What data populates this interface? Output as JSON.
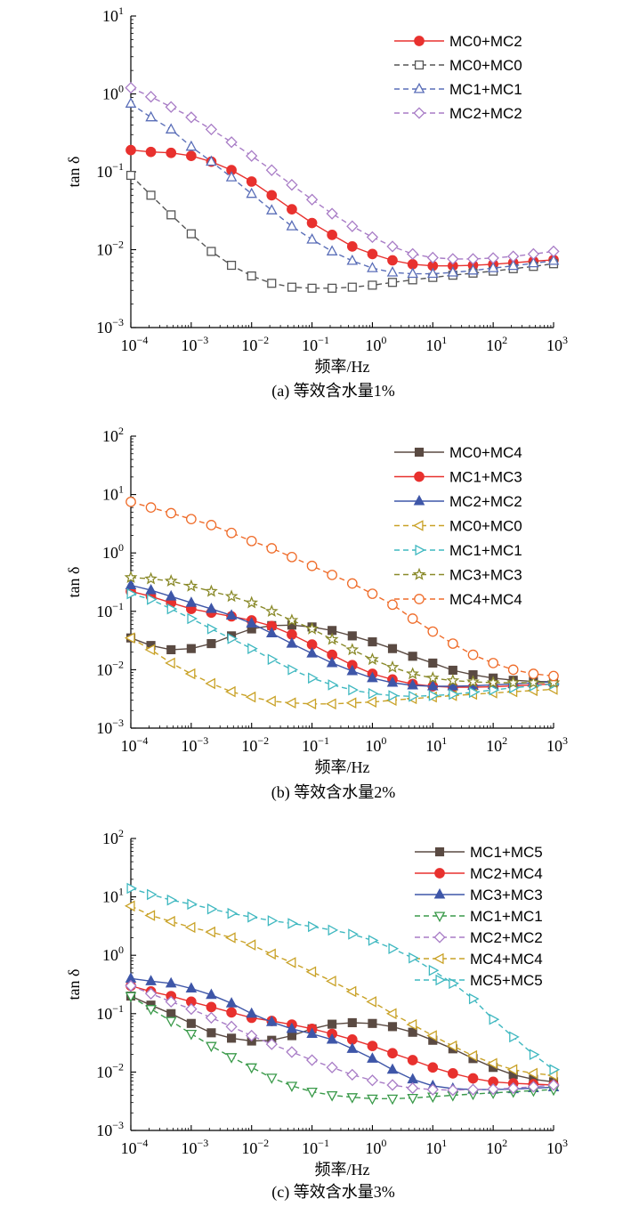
{
  "chart_data": [
    {
      "type": "line",
      "panel": "a",
      "caption": "(a)  等效含水量1%",
      "xlabel": "频率/Hz",
      "ylabel": "tan δ",
      "xscale": "log",
      "yscale": "log",
      "xlim": [
        0.0001,
        1000
      ],
      "ylim": [
        0.001,
        10
      ],
      "x_ticks": [
        "10−4",
        "10−3",
        "10−2",
        "10−1",
        "100",
        "101",
        "102",
        "103"
      ],
      "y_ticks": [
        "10−3",
        "10−2",
        "10−1",
        "100",
        "101"
      ],
      "grid": false,
      "legend_position": "top-right",
      "x": [
        0.0001,
        0.000215,
        0.000464,
        0.001,
        0.00215,
        0.00464,
        0.01,
        0.0215,
        0.0464,
        0.1,
        0.215,
        0.464,
        1,
        2.15,
        4.64,
        10,
        21.5,
        46.4,
        100,
        215,
        464,
        1000
      ],
      "series": [
        {
          "name": "MC0+MC2",
          "color": "#e8312e",
          "marker": "circle-filled",
          "dashed": false,
          "values": [
            0.19,
            0.18,
            0.175,
            0.16,
            0.135,
            0.105,
            0.075,
            0.05,
            0.033,
            0.022,
            0.0155,
            0.011,
            0.0088,
            0.0073,
            0.0065,
            0.0062,
            0.0062,
            0.0063,
            0.0065,
            0.0068,
            0.0071,
            0.0074
          ]
        },
        {
          "name": "MC0+MC0",
          "color": "#555555",
          "marker": "square-open",
          "dashed": true,
          "values": [
            0.09,
            0.05,
            0.028,
            0.016,
            0.0095,
            0.0063,
            0.0046,
            0.0037,
            0.0033,
            0.0032,
            0.0032,
            0.0033,
            0.0035,
            0.0038,
            0.0041,
            0.0044,
            0.0047,
            0.005,
            0.0053,
            0.0057,
            0.0061,
            0.0066
          ]
        },
        {
          "name": "MC1+MC1",
          "color": "#5a6eb8",
          "marker": "triangle-open",
          "dashed": true,
          "values": [
            0.75,
            0.5,
            0.35,
            0.21,
            0.135,
            0.085,
            0.052,
            0.032,
            0.02,
            0.0135,
            0.0095,
            0.0072,
            0.0058,
            0.0051,
            0.0049,
            0.0049,
            0.0051,
            0.0054,
            0.0058,
            0.0062,
            0.0067,
            0.0072
          ]
        },
        {
          "name": "MC2+MC2",
          "color": "#a87cc6",
          "marker": "diamond-open",
          "dashed": true,
          "values": [
            1.2,
            0.92,
            0.68,
            0.5,
            0.35,
            0.24,
            0.16,
            0.105,
            0.068,
            0.044,
            0.029,
            0.02,
            0.0145,
            0.011,
            0.0088,
            0.0079,
            0.0076,
            0.0076,
            0.0078,
            0.0082,
            0.0088,
            0.0095
          ]
        }
      ]
    },
    {
      "type": "line",
      "panel": "b",
      "caption": "(b)  等效含水量2%",
      "xlabel": "频率/Hz",
      "ylabel": "tan δ",
      "xscale": "log",
      "yscale": "log",
      "xlim": [
        0.0001,
        1000
      ],
      "ylim": [
        0.001,
        100
      ],
      "x_ticks": [
        "10−4",
        "10−3",
        "10−2",
        "10−1",
        "100",
        "101",
        "102",
        "103"
      ],
      "y_ticks": [
        "10−3",
        "10−2",
        "10−1",
        "100",
        "101",
        "102"
      ],
      "grid": false,
      "legend_position": "top-right",
      "x": [
        0.0001,
        0.000215,
        0.000464,
        0.001,
        0.00215,
        0.00464,
        0.01,
        0.0215,
        0.0464,
        0.1,
        0.215,
        0.464,
        1,
        2.15,
        4.64,
        10,
        21.5,
        46.4,
        100,
        215,
        464,
        1000
      ],
      "series": [
        {
          "name": "MC0+MC4",
          "color": "#5a4a42",
          "marker": "square-filled",
          "dashed": false,
          "values": [
            0.035,
            0.026,
            0.022,
            0.023,
            0.028,
            0.038,
            0.05,
            0.057,
            0.058,
            0.054,
            0.047,
            0.038,
            0.03,
            0.023,
            0.017,
            0.013,
            0.0098,
            0.0082,
            0.0072,
            0.0066,
            0.0063,
            0.0062
          ]
        },
        {
          "name": "MC1+MC3",
          "color": "#e8312e",
          "marker": "circle-filled",
          "dashed": false,
          "values": [
            0.22,
            0.18,
            0.14,
            0.11,
            0.095,
            0.082,
            0.07,
            0.056,
            0.04,
            0.027,
            0.018,
            0.012,
            0.0085,
            0.0068,
            0.0057,
            0.0052,
            0.005,
            0.005,
            0.0051,
            0.0053,
            0.0055,
            0.0057
          ]
        },
        {
          "name": "MC2+MC2",
          "color": "#3e56a8",
          "marker": "triangle-filled",
          "dashed": false,
          "values": [
            0.28,
            0.23,
            0.18,
            0.14,
            0.11,
            0.085,
            0.062,
            0.042,
            0.028,
            0.019,
            0.013,
            0.0095,
            0.0072,
            0.006,
            0.0054,
            0.0052,
            0.0052,
            0.0053,
            0.0055,
            0.0057,
            0.006,
            0.0062
          ]
        },
        {
          "name": "MC0+MC0",
          "color": "#c9a227",
          "marker": "triangle-left-open",
          "dashed": true,
          "values": [
            0.035,
            0.022,
            0.013,
            0.0085,
            0.0058,
            0.0042,
            0.0034,
            0.0029,
            0.0027,
            0.0026,
            0.0026,
            0.0027,
            0.0028,
            0.003,
            0.0032,
            0.0034,
            0.0036,
            0.0038,
            0.004,
            0.0042,
            0.0044,
            0.0046
          ]
        },
        {
          "name": "MC1+MC1",
          "color": "#3fb8c0",
          "marker": "triangle-right-open",
          "dashed": true,
          "values": [
            0.2,
            0.16,
            0.11,
            0.075,
            0.05,
            0.034,
            0.023,
            0.015,
            0.01,
            0.0072,
            0.0055,
            0.0045,
            0.0039,
            0.0036,
            0.0035,
            0.0036,
            0.0038,
            0.0041,
            0.0045,
            0.0049,
            0.0053,
            0.0057
          ]
        },
        {
          "name": "MC3+MC3",
          "color": "#8a8a2a",
          "marker": "star-open",
          "dashed": true,
          "values": [
            0.38,
            0.36,
            0.33,
            0.27,
            0.22,
            0.18,
            0.14,
            0.1,
            0.07,
            0.05,
            0.033,
            0.022,
            0.015,
            0.011,
            0.0085,
            0.0072,
            0.0065,
            0.0062,
            0.006,
            0.006,
            0.006,
            0.006
          ]
        },
        {
          "name": "MC4+MC4",
          "color": "#ef6c2a",
          "marker": "circle-open",
          "dashed": true,
          "values": [
            7.5,
            6.0,
            4.8,
            3.8,
            3.0,
            2.2,
            1.6,
            1.2,
            0.85,
            0.6,
            0.42,
            0.3,
            0.2,
            0.13,
            0.075,
            0.045,
            0.028,
            0.018,
            0.013,
            0.01,
            0.0085,
            0.0078
          ]
        }
      ]
    },
    {
      "type": "line",
      "panel": "c",
      "caption": "(c)  等效含水量3%",
      "xlabel": "频率/Hz",
      "ylabel": "tan δ",
      "xscale": "log",
      "yscale": "log",
      "xlim": [
        0.0001,
        1000
      ],
      "ylim": [
        0.001,
        100
      ],
      "x_ticks": [
        "10−4",
        "10−3",
        "10−2",
        "10−1",
        "100",
        "101",
        "102",
        "103"
      ],
      "y_ticks": [
        "10−3",
        "10−2",
        "10−1",
        "100",
        "101",
        "102"
      ],
      "grid": false,
      "legend_position": "top-right",
      "x": [
        0.0001,
        0.000215,
        0.000464,
        0.001,
        0.00215,
        0.00464,
        0.01,
        0.0215,
        0.0464,
        0.1,
        0.215,
        0.464,
        1,
        2.15,
        4.64,
        10,
        21.5,
        46.4,
        100,
        215,
        464,
        1000
      ],
      "series": [
        {
          "name": "MC1+MC5",
          "color": "#5a4a42",
          "marker": "square-filled",
          "dashed": false,
          "values": [
            0.2,
            0.14,
            0.1,
            0.068,
            0.047,
            0.038,
            0.034,
            0.035,
            0.042,
            0.055,
            0.066,
            0.07,
            0.068,
            0.06,
            0.048,
            0.035,
            0.025,
            0.017,
            0.012,
            0.009,
            0.0075,
            0.0068
          ]
        },
        {
          "name": "MC2+MC4",
          "color": "#e8312e",
          "marker": "circle-filled",
          "dashed": false,
          "values": [
            0.3,
            0.24,
            0.2,
            0.16,
            0.13,
            0.105,
            0.085,
            0.075,
            0.065,
            0.055,
            0.045,
            0.036,
            0.028,
            0.021,
            0.016,
            0.012,
            0.0095,
            0.0078,
            0.0068,
            0.0064,
            0.0062,
            0.006
          ]
        },
        {
          "name": "MC3+MC3",
          "color": "#3e56a8",
          "marker": "triangle-filled",
          "dashed": false,
          "values": [
            0.4,
            0.36,
            0.33,
            0.27,
            0.21,
            0.15,
            0.1,
            0.072,
            0.055,
            0.045,
            0.036,
            0.025,
            0.017,
            0.011,
            0.0075,
            0.0058,
            0.0052,
            0.005,
            0.005,
            0.0051,
            0.0053,
            0.0055
          ]
        },
        {
          "name": "MC1+MC1",
          "color": "#3a9a4a",
          "marker": "triangle-down-open",
          "dashed": true,
          "values": [
            0.2,
            0.12,
            0.075,
            0.045,
            0.028,
            0.018,
            0.012,
            0.008,
            0.0058,
            0.0046,
            0.004,
            0.0037,
            0.0035,
            0.0035,
            0.0036,
            0.0038,
            0.004,
            0.0042,
            0.0044,
            0.0046,
            0.0048,
            0.005
          ]
        },
        {
          "name": "MC2+MC2",
          "color": "#a87cc6",
          "marker": "diamond-open",
          "dashed": true,
          "values": [
            0.3,
            0.22,
            0.16,
            0.12,
            0.085,
            0.06,
            0.042,
            0.03,
            0.022,
            0.016,
            0.012,
            0.009,
            0.0072,
            0.006,
            0.0053,
            0.005,
            0.0049,
            0.005,
            0.0051,
            0.0053,
            0.0056,
            0.006
          ]
        },
        {
          "name": "MC4+MC4",
          "color": "#c9a227",
          "marker": "triangle-left-open",
          "dashed": true,
          "values": [
            7.0,
            4.8,
            3.8,
            3.0,
            2.5,
            2.0,
            1.5,
            1.05,
            0.75,
            0.52,
            0.36,
            0.24,
            0.16,
            0.1,
            0.065,
            0.042,
            0.028,
            0.019,
            0.014,
            0.011,
            0.0095,
            0.0088
          ]
        },
        {
          "name": "MC5+MC5",
          "color": "#3fb8c0",
          "marker": "triangle-right-open",
          "dashed": true,
          "values": [
            14.0,
            11.0,
            8.8,
            7.5,
            6.2,
            5.2,
            4.5,
            3.9,
            3.5,
            3.1,
            2.7,
            2.3,
            1.8,
            1.3,
            0.9,
            0.55,
            0.33,
            0.18,
            0.08,
            0.04,
            0.02,
            0.011
          ]
        }
      ]
    }
  ]
}
